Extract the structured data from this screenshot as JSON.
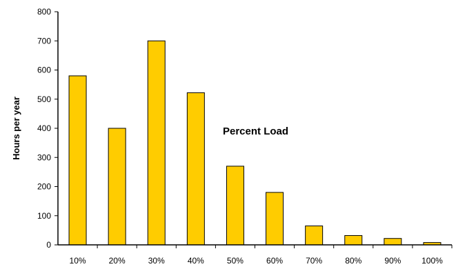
{
  "chart_data": {
    "type": "bar",
    "categories": [
      "10%",
      "20%",
      "30%",
      "40%",
      "50%",
      "60%",
      "70%",
      "80%",
      "90%",
      "100%"
    ],
    "values": [
      580,
      400,
      700,
      522,
      270,
      180,
      65,
      32,
      22,
      8
    ],
    "title": "",
    "xlabel": "",
    "ylabel": "Hours per year",
    "annotation": "Percent Load",
    "ylim": [
      0,
      800
    ],
    "yticks": [
      0,
      100,
      200,
      300,
      400,
      500,
      600,
      700,
      800
    ],
    "grid": false,
    "legend": "none",
    "colors": {
      "bar_fill": "#FFCC00",
      "bar_stroke": "#000000",
      "axis": "#000000"
    }
  }
}
